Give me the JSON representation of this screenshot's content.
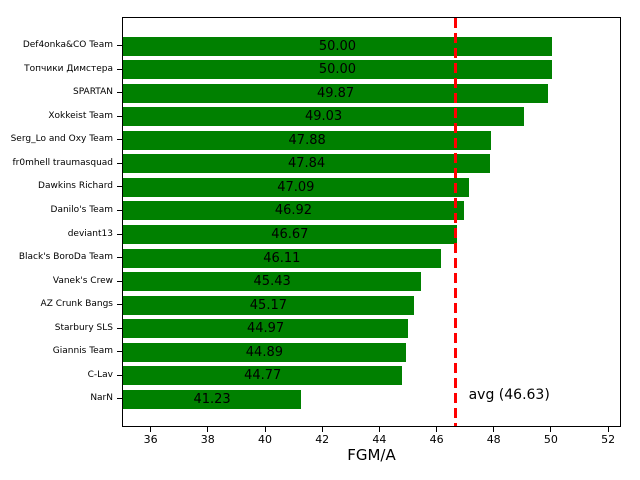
{
  "chart_data": {
    "type": "bar",
    "orientation": "horizontal",
    "title": "",
    "xlabel": "FGM/A",
    "ylabel": "",
    "grid": false,
    "legend": false,
    "categories": [
      "Def4onka&CO Team",
      "Топчики Димстера",
      "SPARTAN",
      "Xokkeist Team",
      "Serg_Lo and Oxy Team",
      "fr0mhell traumasquad",
      "Dawkins Richard",
      "Danilo's Team",
      "deviant13",
      "Black's BoroDa Team",
      "Vanek's Crew",
      "AZ Crunk Bangs",
      "Starbury SLS",
      "Giannis Team",
      "C-Lav",
      "NarN"
    ],
    "values": [
      50.0,
      50.0,
      49.87,
      49.03,
      47.88,
      47.84,
      47.09,
      46.92,
      46.67,
      46.11,
      45.43,
      45.17,
      44.97,
      44.89,
      44.77,
      41.23
    ],
    "value_labels": [
      "50.00",
      "50.00",
      "49.87",
      "49.03",
      "47.88",
      "47.84",
      "47.09",
      "46.92",
      "46.67",
      "46.11",
      "45.43",
      "45.17",
      "44.97",
      "44.89",
      "44.77",
      "41.23"
    ],
    "bar_color": "#008000",
    "value_label_color": "#000000",
    "xlim": [
      35,
      52.45
    ],
    "xticks": [
      36,
      38,
      40,
      42,
      44,
      46,
      48,
      50,
      52
    ],
    "average_line": {
      "value": 46.63,
      "label": "avg (46.63)",
      "color": "#ff0000",
      "style": "dashed"
    }
  }
}
